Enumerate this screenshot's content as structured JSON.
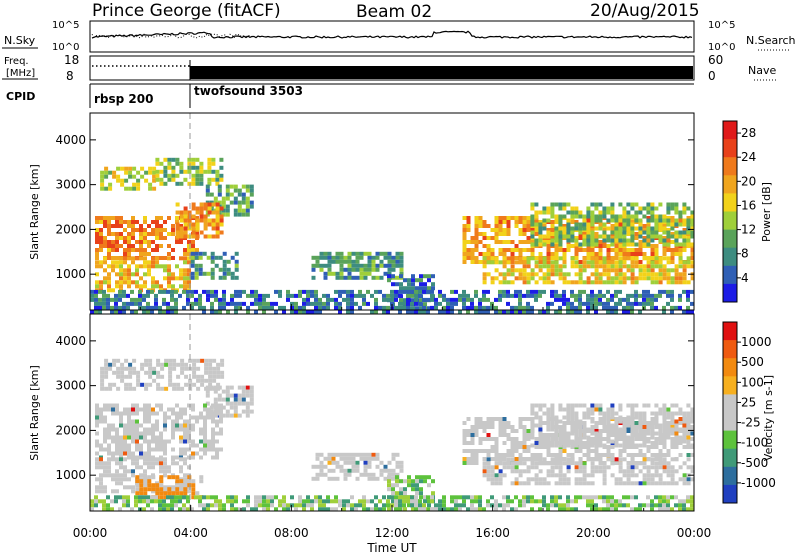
{
  "header": {
    "station": "Prince George (fitACF)",
    "beam": "Beam 02",
    "date": "20/Aug/2015"
  },
  "top_panels": {
    "nsky_label": "N.Sky",
    "nsearch_label": "N.Search",
    "freq_label_1": "Freq.",
    "freq_label_2": "[MHz]",
    "nave_label": "Nave",
    "cpid_label": "CPID",
    "nsky_ticks": [
      "10^5",
      "10^0"
    ],
    "nsearch_ticks": [
      "10^5",
      "10^0"
    ],
    "freq_ticks": [
      "18",
      "8"
    ],
    "nave_ticks": [
      "60",
      "0"
    ],
    "cpid_segments": [
      {
        "label": "rbsp 200",
        "start_hour": 0
      },
      {
        "label": "twofsound 3503",
        "start_hour": 4
      }
    ]
  },
  "x_axis": {
    "label": "Time UT",
    "ticks": [
      "00:00",
      "04:00",
      "08:00",
      "12:00",
      "16:00",
      "20:00",
      "00:00"
    ]
  },
  "chart_data": [
    {
      "type": "heatmap",
      "name": "power_panel",
      "ylabel": "Slant Range [km]",
      "ylim": [
        200,
        4600
      ],
      "yticks": [
        "1000",
        "2000",
        "3000",
        "4000"
      ],
      "xlim_hours": [
        0,
        24
      ],
      "colorbar": {
        "label": "Power [dB]",
        "ticks": [
          "4",
          "8",
          "12",
          "16",
          "20",
          "24",
          "28"
        ],
        "range": [
          0,
          30
        ],
        "colors": [
          "#1c1ce6",
          "#2f5fb5",
          "#3d8c80",
          "#5aa35a",
          "#9fcf3a",
          "#f2d21a",
          "#f0a51e",
          "#ef7a1c",
          "#e8411a",
          "#e01a1a"
        ]
      },
      "regions": [
        {
          "t": [
            0.4,
            2.6
          ],
          "r": [
            2900,
            3400
          ],
          "level": 14
        },
        {
          "t": [
            2.6,
            5.2
          ],
          "r": [
            3000,
            3600
          ],
          "level": 13
        },
        {
          "t": [
            4.6,
            6.4
          ],
          "r": [
            2300,
            3000
          ],
          "level": 10
        },
        {
          "t": [
            0.2,
            4.2
          ],
          "r": [
            1400,
            2300
          ],
          "level": 22
        },
        {
          "t": [
            3.4,
            5.2
          ],
          "r": [
            1800,
            2600
          ],
          "level": 20
        },
        {
          "t": [
            0.2,
            4.0
          ],
          "r": [
            600,
            1400
          ],
          "level": 18
        },
        {
          "t": [
            4.0,
            5.8
          ],
          "r": [
            900,
            1500
          ],
          "level": 8
        },
        {
          "t": [
            8.8,
            12.4
          ],
          "r": [
            950,
            1500
          ],
          "level": 9
        },
        {
          "t": [
            11.8,
            13.6
          ],
          "r": [
            200,
            1000
          ],
          "level": 6
        },
        {
          "t": [
            14.8,
            24.0
          ],
          "r": [
            1300,
            2300
          ],
          "level": 20
        },
        {
          "t": [
            15.6,
            24.0
          ],
          "r": [
            850,
            1400
          ],
          "level": 17
        },
        {
          "t": [
            17.5,
            24.0
          ],
          "r": [
            1700,
            2600
          ],
          "level": 12
        },
        {
          "t": [
            0.0,
            24.0
          ],
          "r": [
            200,
            650
          ],
          "level": 6
        }
      ]
    },
    {
      "type": "heatmap",
      "name": "velocity_panel",
      "ylabel": "Slant Range [km]",
      "ylim": [
        200,
        4600
      ],
      "yticks": [
        "1000",
        "2000",
        "3000",
        "4000"
      ],
      "xlim_hours": [
        0,
        24
      ],
      "colorbar": {
        "label": "Velocity [m s-1]",
        "ticks": [
          "1000",
          "500",
          "100",
          "25",
          "-25",
          "-100",
          "-500",
          "-1000"
        ],
        "colors": [
          "#2040c0",
          "#2d6e9e",
          "#3f9a78",
          "#5dc23c",
          "#c8c8c8",
          "#c8c8c8",
          "#f7b020",
          "#f28a10",
          "#ef5a10",
          "#e01010"
        ]
      },
      "regions": [
        {
          "t": [
            0.4,
            5.2
          ],
          "r": [
            2900,
            3600
          ],
          "cls": "gray"
        },
        {
          "t": [
            4.6,
            6.4
          ],
          "r": [
            2300,
            3000
          ],
          "cls": "gray"
        },
        {
          "t": [
            0.2,
            5.2
          ],
          "r": [
            1400,
            2600
          ],
          "cls": "gray"
        },
        {
          "t": [
            0.2,
            4.0
          ],
          "r": [
            600,
            1400
          ],
          "cls": "gray"
        },
        {
          "t": [
            1.8,
            4.4
          ],
          "r": [
            550,
            1000
          ],
          "cls": "orange"
        },
        {
          "t": [
            8.8,
            12.4
          ],
          "r": [
            950,
            1500
          ],
          "cls": "gray"
        },
        {
          "t": [
            11.8,
            13.6
          ],
          "r": [
            200,
            1000
          ],
          "cls": "green"
        },
        {
          "t": [
            14.8,
            24.0
          ],
          "r": [
            1300,
            2300
          ],
          "cls": "gray"
        },
        {
          "t": [
            15.6,
            24.0
          ],
          "r": [
            850,
            1400
          ],
          "cls": "gray"
        },
        {
          "t": [
            17.5,
            24.0
          ],
          "r": [
            1700,
            2600
          ],
          "cls": "gray"
        },
        {
          "t": [
            0.0,
            24.0
          ],
          "r": [
            200,
            550
          ],
          "cls": "green"
        }
      ]
    }
  ]
}
